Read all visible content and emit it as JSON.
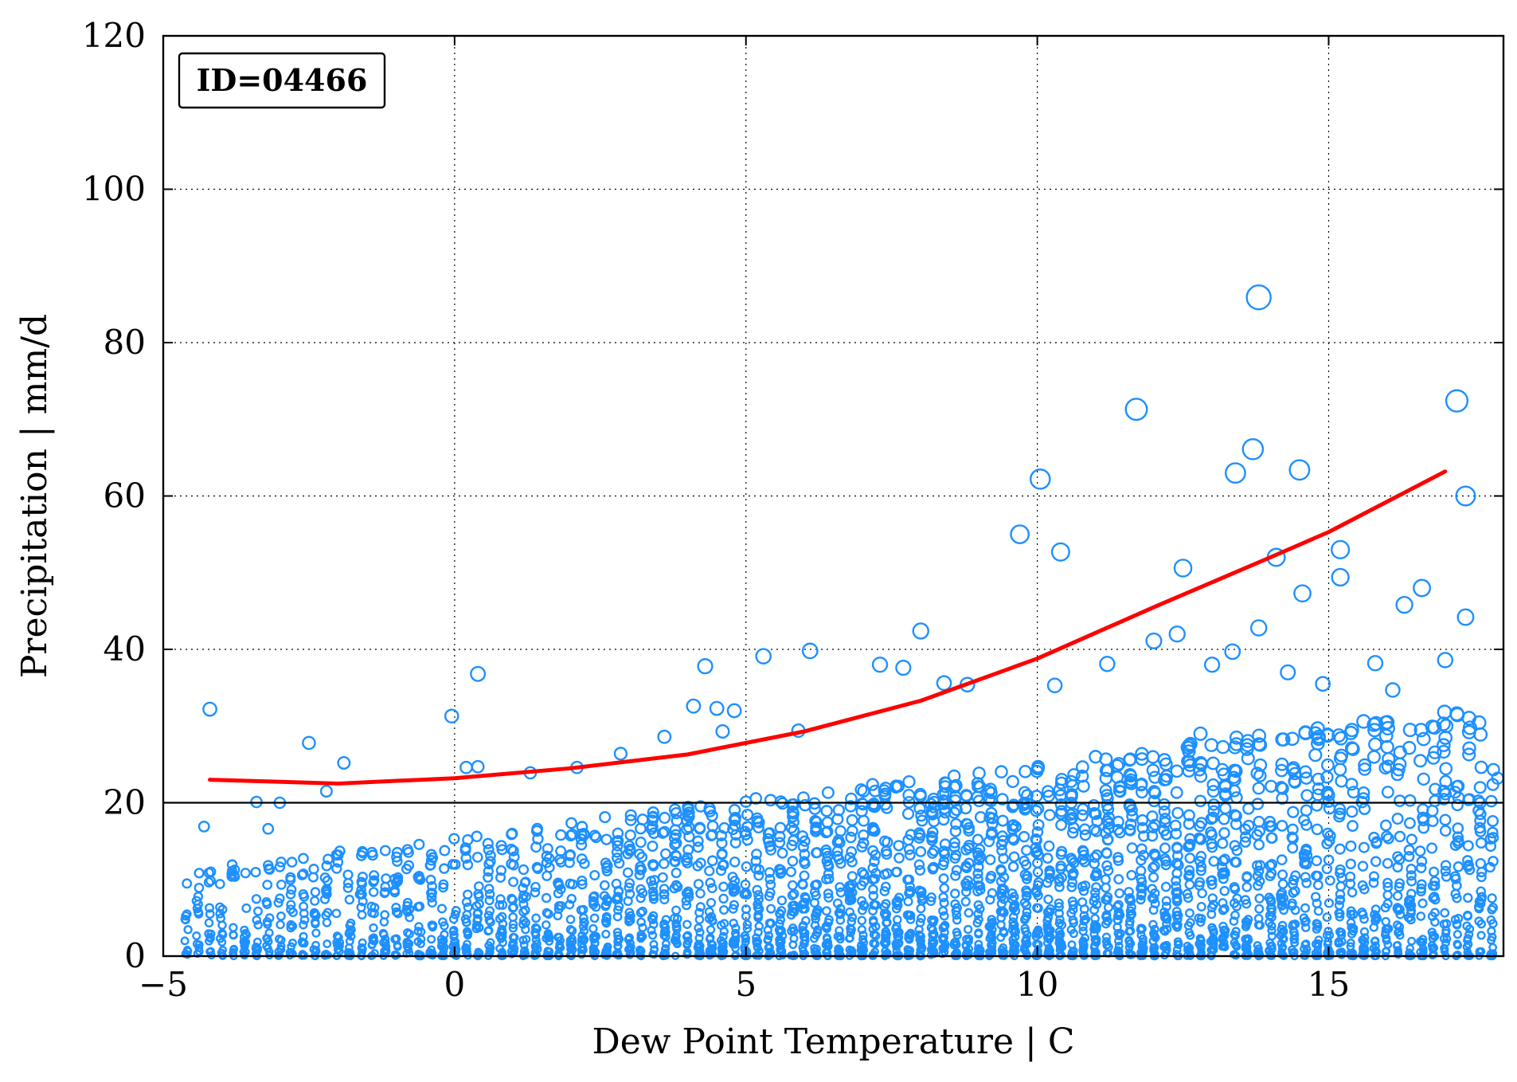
{
  "chart_data": {
    "type": "scatter",
    "title": "",
    "annotation": "ID=04466",
    "xlabel": "Dew Point Temperature | C",
    "ylabel": "Precipitation | mm/d",
    "xlim": [
      -5,
      18
    ],
    "ylim": [
      0,
      120
    ],
    "xticks": [
      -5,
      0,
      5,
      10,
      15
    ],
    "xtick_labels": [
      "−5",
      "0",
      "5",
      "10",
      "15"
    ],
    "yticks": [
      0,
      20,
      40,
      60,
      80,
      100,
      120
    ],
    "ytick_labels": [
      "0",
      "20",
      "40",
      "60",
      "80",
      "100",
      "120"
    ],
    "grid": true,
    "reference_line_y": 20,
    "marker_color": "#1e90ff",
    "fit_color": "#ff0000",
    "series": [
      {
        "kind": "scatter",
        "marker": "open-circle",
        "marker_size": "scales with precipitation",
        "sample_points": [
          {
            "x": -4.2,
            "y": 32.2
          },
          {
            "x": -2.5,
            "y": 27.8
          },
          {
            "x": -1.9,
            "y": 25.2
          },
          {
            "x": -2.2,
            "y": 21.5
          },
          {
            "x": -4.3,
            "y": 16.9
          },
          {
            "x": -3.2,
            "y": 16.6
          },
          {
            "x": -3.4,
            "y": 20.1
          },
          {
            "x": -3.0,
            "y": 20.0
          },
          {
            "x": -0.05,
            "y": 31.3
          },
          {
            "x": 0.4,
            "y": 36.8
          },
          {
            "x": 0.2,
            "y": 24.6
          },
          {
            "x": 0.4,
            "y": 24.7
          },
          {
            "x": 1.3,
            "y": 23.9
          },
          {
            "x": 2.1,
            "y": 24.6
          },
          {
            "x": 2.85,
            "y": 26.4
          },
          {
            "x": 3.6,
            "y": 28.6
          },
          {
            "x": 4.3,
            "y": 37.8
          },
          {
            "x": 4.1,
            "y": 32.6
          },
          {
            "x": 4.5,
            "y": 32.3
          },
          {
            "x": 4.8,
            "y": 32.0
          },
          {
            "x": 4.6,
            "y": 29.3
          },
          {
            "x": 5.3,
            "y": 39.1
          },
          {
            "x": 6.1,
            "y": 39.8
          },
          {
            "x": 5.9,
            "y": 29.4
          },
          {
            "x": 7.3,
            "y": 38.0
          },
          {
            "x": 7.7,
            "y": 37.6
          },
          {
            "x": 8.0,
            "y": 42.4
          },
          {
            "x": 8.4,
            "y": 35.6
          },
          {
            "x": 8.8,
            "y": 35.4
          },
          {
            "x": 9.7,
            "y": 55.0
          },
          {
            "x": 10.05,
            "y": 62.2
          },
          {
            "x": 10.4,
            "y": 52.7
          },
          {
            "x": 10.3,
            "y": 35.3
          },
          {
            "x": 11.2,
            "y": 38.1
          },
          {
            "x": 11.7,
            "y": 71.3
          },
          {
            "x": 12.0,
            "y": 41.1
          },
          {
            "x": 12.5,
            "y": 50.6
          },
          {
            "x": 12.4,
            "y": 42.0
          },
          {
            "x": 13.0,
            "y": 38.0
          },
          {
            "x": 13.4,
            "y": 63.0
          },
          {
            "x": 13.35,
            "y": 39.7
          },
          {
            "x": 13.7,
            "y": 66.1
          },
          {
            "x": 13.8,
            "y": 85.9
          },
          {
            "x": 13.8,
            "y": 42.8
          },
          {
            "x": 14.1,
            "y": 52.0
          },
          {
            "x": 14.5,
            "y": 63.4
          },
          {
            "x": 14.55,
            "y": 47.3
          },
          {
            "x": 14.3,
            "y": 37.0
          },
          {
            "x": 15.2,
            "y": 53.0
          },
          {
            "x": 15.2,
            "y": 49.4
          },
          {
            "x": 15.8,
            "y": 38.2
          },
          {
            "x": 16.3,
            "y": 45.8
          },
          {
            "x": 16.6,
            "y": 48.0
          },
          {
            "x": 17.2,
            "y": 72.4
          },
          {
            "x": 17.35,
            "y": 60.0
          },
          {
            "x": 17.35,
            "y": 44.2
          },
          {
            "x": 17.0,
            "y": 38.6
          },
          {
            "x": 17.2,
            "y": 31.6
          },
          {
            "x": 17.6,
            "y": 22.0
          },
          {
            "x": 17.9,
            "y": 23.2
          },
          {
            "x": 16.1,
            "y": 34.7
          },
          {
            "x": 15.6,
            "y": 30.6
          },
          {
            "x": 14.9,
            "y": 35.5
          },
          {
            "x": 12.8,
            "y": 29.0
          }
        ]
      },
      {
        "kind": "fit-curve",
        "points": [
          {
            "x": -4.2,
            "y": 23.0
          },
          {
            "x": -2,
            "y": 22.5
          },
          {
            "x": 0,
            "y": 23.2
          },
          {
            "x": 2,
            "y": 24.5
          },
          {
            "x": 4,
            "y": 26.3
          },
          {
            "x": 6,
            "y": 29.3
          },
          {
            "x": 8,
            "y": 33.3
          },
          {
            "x": 10,
            "y": 38.8
          },
          {
            "x": 12,
            "y": 45.5
          },
          {
            "x": 14,
            "y": 52.0
          },
          {
            "x": 15,
            "y": 55.3
          },
          {
            "x": 17,
            "y": 63.2
          }
        ]
      }
    ]
  }
}
